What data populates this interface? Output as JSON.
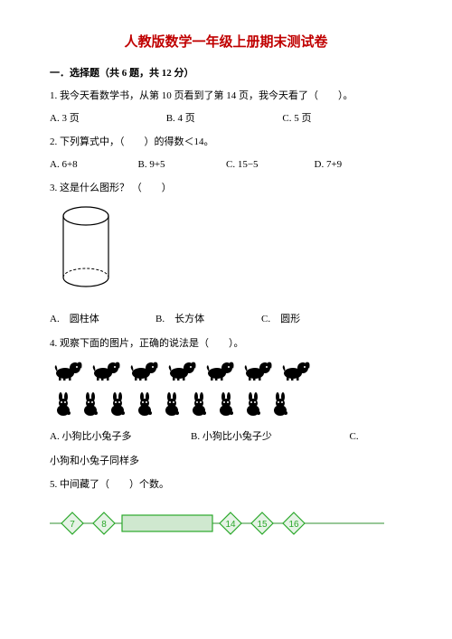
{
  "title": "人教版数学一年级上册期末测试卷",
  "section1": {
    "heading": "一．选择题（共 6 题，共 12 分）",
    "q1": {
      "text": "1. 我今天看数学书，从第 10 页看到了第 14 页，我今天看了（　　）。",
      "a": "A. 3 页",
      "b": "B. 4 页",
      "c": "C. 5 页"
    },
    "q2": {
      "text": "2. 下列算式中，（　　）的得数＜14。",
      "a": "A. 6+8",
      "b": "B. 9+5",
      "c": "C. 15−5",
      "d": "D. 7+9"
    },
    "q3": {
      "text": "3. 这是什么图形？ （　　）",
      "a": "A.　圆柱体",
      "b": "B.　长方体",
      "c": "C.　圆形"
    },
    "q4": {
      "text": "4. 观察下面的图片，正确的说法是（　　）。",
      "a": "A. 小狗比小兔子多",
      "b": "B. 小狗比小兔子少",
      "c": "C.",
      "cLine2": "小狗和小兔子同样多"
    },
    "q5": {
      "text": "5. 中间藏了（　　）个数。"
    }
  },
  "numberLine": {
    "values": [
      "7",
      "8",
      "",
      "14",
      "15",
      "16"
    ],
    "boxWidth": 22,
    "gapBox": 70,
    "colors": {
      "diamondFill": "#e6f3e6",
      "diamondStroke": "#2aa82a",
      "numColor": "#2aa82a",
      "lineColor": "#5aa85a",
      "rectFill": "#cfe8cf",
      "rectStroke": "#2aa82a"
    }
  },
  "dogCount": 7,
  "rabbitCount": 9,
  "cylinder": {
    "width": 60,
    "height": 90,
    "fill": "#ffffff",
    "stroke": "#000000"
  }
}
